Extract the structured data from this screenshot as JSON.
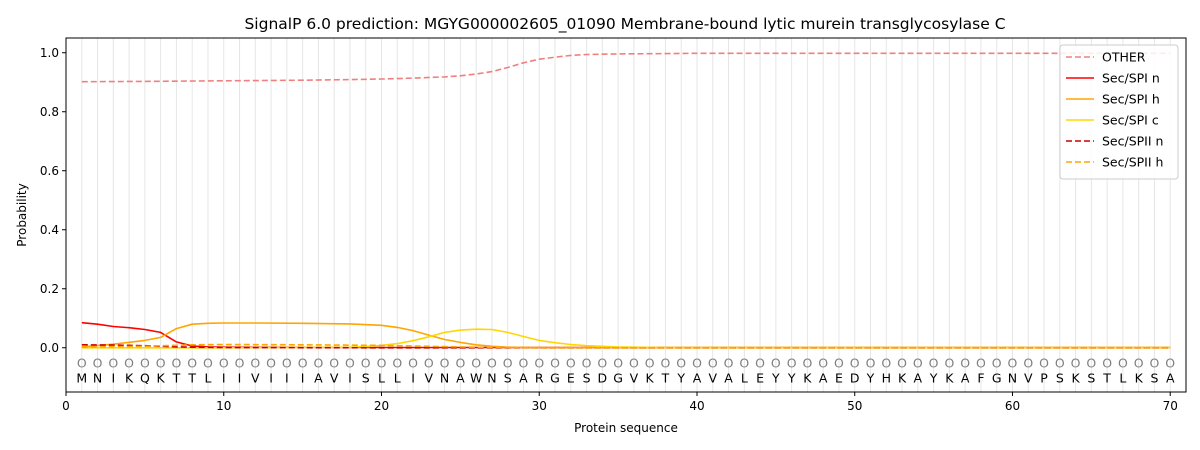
{
  "chart_data": {
    "type": "line",
    "title": "SignalP 6.0 prediction: MGYG000002605_01090 Membrane-bound lytic murein transglycosylase C",
    "xlabel": "Protein sequence",
    "ylabel": "Probability",
    "xlim": [
      0,
      71
    ],
    "ylim": [
      -0.15,
      1.05
    ],
    "xticks": [
      0,
      10,
      20,
      30,
      40,
      50,
      60,
      70
    ],
    "yticks": [
      0.0,
      0.2,
      0.4,
      0.6,
      0.8,
      1.0
    ],
    "xtick_labels": [
      "0",
      "10",
      "20",
      "30",
      "40",
      "50",
      "60",
      "70"
    ],
    "ytick_labels": [
      "0.0",
      "0.2",
      "0.4",
      "0.6",
      "0.8",
      "1.0"
    ],
    "grid": "vertical lines at each residue",
    "legend_position": "top-right",
    "sequence": [
      "M",
      "N",
      "I",
      "K",
      "Q",
      "K",
      "T",
      "T",
      "L",
      "I",
      "I",
      "V",
      "I",
      "I",
      "I",
      "A",
      "V",
      "I",
      "S",
      "L",
      "L",
      "I",
      "V",
      "N",
      "A",
      "W",
      "N",
      "S",
      "A",
      "R",
      "G",
      "E",
      "S",
      "D",
      "G",
      "V",
      "K",
      "T",
      "Y",
      "A",
      "V",
      "A",
      "L",
      "E",
      "Y",
      "Y",
      "K",
      "A",
      "E",
      "D",
      "Y",
      "H",
      "K",
      "A",
      "Y",
      "K",
      "A",
      "F",
      "G",
      "N",
      "V",
      "P",
      "S",
      "K",
      "S",
      "T",
      "L",
      "K",
      "S",
      "A"
    ],
    "marker_symbol": "O",
    "series": [
      {
        "name": "OTHER",
        "color": "#f08080",
        "dash": "dashed",
        "x": [
          1,
          5,
          10,
          15,
          18,
          20,
          22,
          24,
          25,
          26,
          27,
          28,
          29,
          30,
          31,
          32,
          33,
          35,
          38,
          40,
          45,
          50,
          55,
          60,
          65,
          70
        ],
        "y": [
          0.902,
          0.903,
          0.905,
          0.907,
          0.909,
          0.911,
          0.914,
          0.918,
          0.922,
          0.928,
          0.936,
          0.95,
          0.966,
          0.978,
          0.985,
          0.991,
          0.994,
          0.996,
          0.997,
          0.998,
          0.998,
          0.998,
          0.998,
          0.998,
          0.998,
          0.998
        ]
      },
      {
        "name": "Sec/SPI n",
        "color": "#ff0000",
        "dash": "solid",
        "x": [
          1,
          2,
          3,
          4,
          5,
          6,
          7,
          8,
          9,
          10,
          20,
          30,
          40,
          50,
          60,
          70
        ],
        "y": [
          0.085,
          0.08,
          0.072,
          0.068,
          0.062,
          0.052,
          0.02,
          0.006,
          0.003,
          0.002,
          0.001,
          0.001,
          0.001,
          0.001,
          0.001,
          0.001
        ]
      },
      {
        "name": "Sec/SPI h",
        "color": "#ffa500",
        "dash": "solid",
        "x": [
          1,
          3,
          5,
          6,
          7,
          8,
          9,
          10,
          12,
          15,
          18,
          20,
          21,
          22,
          23,
          24,
          25,
          26,
          27,
          28,
          30,
          40,
          50,
          60,
          70
        ],
        "y": [
          0.003,
          0.012,
          0.025,
          0.035,
          0.065,
          0.08,
          0.083,
          0.084,
          0.084,
          0.083,
          0.081,
          0.076,
          0.069,
          0.058,
          0.043,
          0.028,
          0.018,
          0.01,
          0.005,
          0.002,
          0.001,
          0.001,
          0.001,
          0.001,
          0.001
        ]
      },
      {
        "name": "Sec/SPI c",
        "color": "#ffd700",
        "dash": "solid",
        "x": [
          1,
          10,
          18,
          19,
          20,
          21,
          22,
          23,
          24,
          25,
          26,
          27,
          28,
          29,
          30,
          31,
          32,
          33,
          35,
          38,
          40,
          50,
          60,
          70
        ],
        "y": [
          0.0,
          0.0,
          0.002,
          0.004,
          0.008,
          0.014,
          0.024,
          0.037,
          0.052,
          0.06,
          0.063,
          0.062,
          0.052,
          0.038,
          0.025,
          0.017,
          0.011,
          0.007,
          0.003,
          0.001,
          0.001,
          0.001,
          0.001,
          0.001
        ]
      },
      {
        "name": "Sec/SPII n",
        "color": "#cc0000",
        "dash": "dashed",
        "x": [
          1,
          3,
          5,
          6,
          7,
          8,
          10,
          20,
          30,
          40,
          50,
          60,
          70
        ],
        "y": [
          0.01,
          0.009,
          0.007,
          0.005,
          0.003,
          0.002,
          0.001,
          0.0,
          0.0,
          0.0,
          0.0,
          0.0,
          0.0
        ]
      },
      {
        "name": "Sec/SPII h",
        "color": "#ffa500",
        "dash": "dashed",
        "x": [
          1,
          5,
          8,
          10,
          15,
          20,
          22,
          24,
          26,
          28,
          30,
          40,
          50,
          60,
          70
        ],
        "y": [
          0.002,
          0.005,
          0.01,
          0.011,
          0.01,
          0.008,
          0.006,
          0.004,
          0.002,
          0.001,
          0.0,
          0.0,
          0.0,
          0.0,
          0.0
        ]
      }
    ]
  }
}
